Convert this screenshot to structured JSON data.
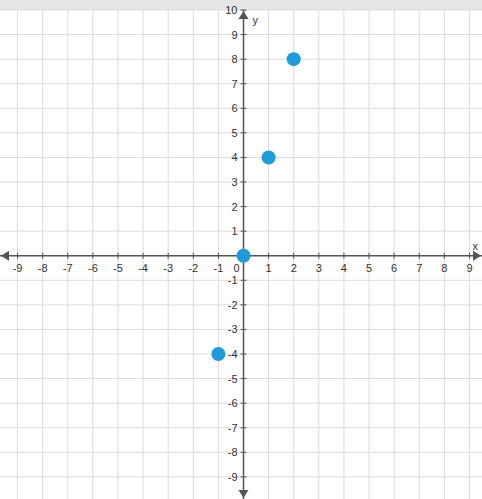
{
  "chart_data": {
    "type": "scatter",
    "x_label": "x",
    "y_label": "y",
    "x": [
      -1,
      0,
      1,
      2
    ],
    "values": [
      -4,
      0,
      4,
      8
    ],
    "color": "#1e9bd8",
    "marker": "circle",
    "xlim": [
      -9.7,
      9.5
    ],
    "xticks": [
      -9,
      -8,
      -7,
      -6,
      -5,
      -4,
      -3,
      -2,
      -1,
      0,
      1,
      2,
      3,
      4,
      5,
      6,
      7,
      8,
      9
    ],
    "ylim": [
      -9.9,
      10
    ],
    "yticks": [
      -9,
      -8,
      -7,
      -6,
      -5,
      -4,
      -3,
      -2,
      -1,
      1,
      2,
      3,
      4,
      5,
      6,
      7,
      8,
      9,
      10
    ],
    "grid": true
  }
}
